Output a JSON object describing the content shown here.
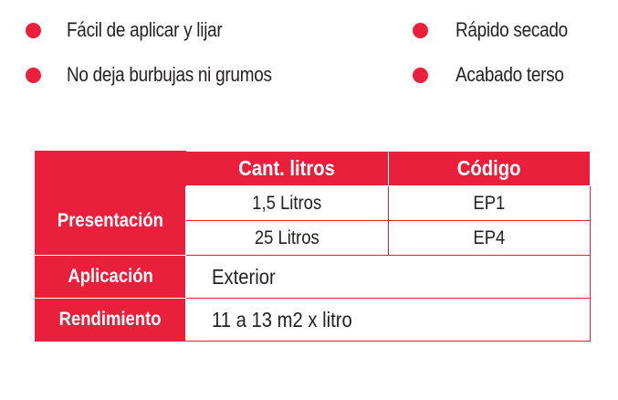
{
  "features": {
    "items": [
      {
        "label": "Fácil de aplicar y lijar"
      },
      {
        "label": "No deja burbujas ni grumos"
      },
      {
        "label": "Rápido secado"
      },
      {
        "label": "Acabado terso"
      }
    ],
    "bullet_color": "#e8203c"
  },
  "table": {
    "headers": {
      "blank": "",
      "quantity": "Cant. litros",
      "code": "Código"
    },
    "presentation": {
      "label": "Presentación",
      "rows": [
        {
          "quantity": "1,5 Litros",
          "code": "EP1"
        },
        {
          "quantity": "25 Litros",
          "code": "EP4"
        }
      ]
    },
    "application": {
      "label": "Aplicación",
      "value": "Exterior"
    },
    "yield": {
      "label": "Rendimiento",
      "value": "11 a 13 m2 x litro"
    },
    "accent_color": "#e8203c"
  }
}
